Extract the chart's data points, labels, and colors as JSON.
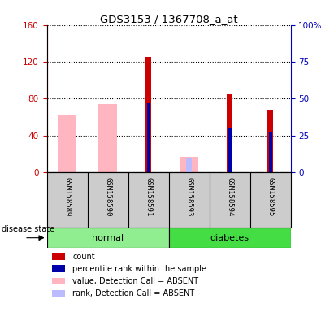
{
  "title": "GDS3153 / 1367708_a_at",
  "samples": [
    "GSM158589",
    "GSM158590",
    "GSM158591",
    "GSM158593",
    "GSM158594",
    "GSM158595"
  ],
  "groups": [
    "normal",
    "normal",
    "normal",
    "diabetes",
    "diabetes",
    "diabetes"
  ],
  "left_ylim": [
    0,
    160
  ],
  "right_ylim": [
    0,
    100
  ],
  "left_yticks": [
    0,
    40,
    80,
    120,
    160
  ],
  "right_yticks": [
    0,
    25,
    50,
    75,
    100
  ],
  "right_yticklabels": [
    "0",
    "25",
    "50",
    "75",
    "100%"
  ],
  "count_values": [
    0,
    0,
    125,
    0,
    85,
    68
  ],
  "rank_values": [
    0,
    0,
    47,
    0,
    30,
    27
  ],
  "absent_value_values": [
    62,
    74,
    0,
    17,
    0,
    0
  ],
  "absent_rank_values": [
    0,
    0,
    0,
    10,
    0,
    0
  ],
  "count_bar_color": "#CC0000",
  "rank_bar_color": "#0000AA",
  "absent_val_color": "#FFB6C1",
  "absent_rnk_color": "#BBBBFF",
  "left_yaxis_color": "#CC0000",
  "right_yaxis_color": "#0000BB",
  "normal_color": "#90EE90",
  "diabetes_color": "#44DD44",
  "label_bg_color": "#CCCCCC",
  "legend_items": [
    {
      "label": "count",
      "color": "#CC0000"
    },
    {
      "label": "percentile rank within the sample",
      "color": "#0000AA"
    },
    {
      "label": "value, Detection Call = ABSENT",
      "color": "#FFB6C1"
    },
    {
      "label": "rank, Detection Call = ABSENT",
      "color": "#BBBBFF"
    }
  ]
}
